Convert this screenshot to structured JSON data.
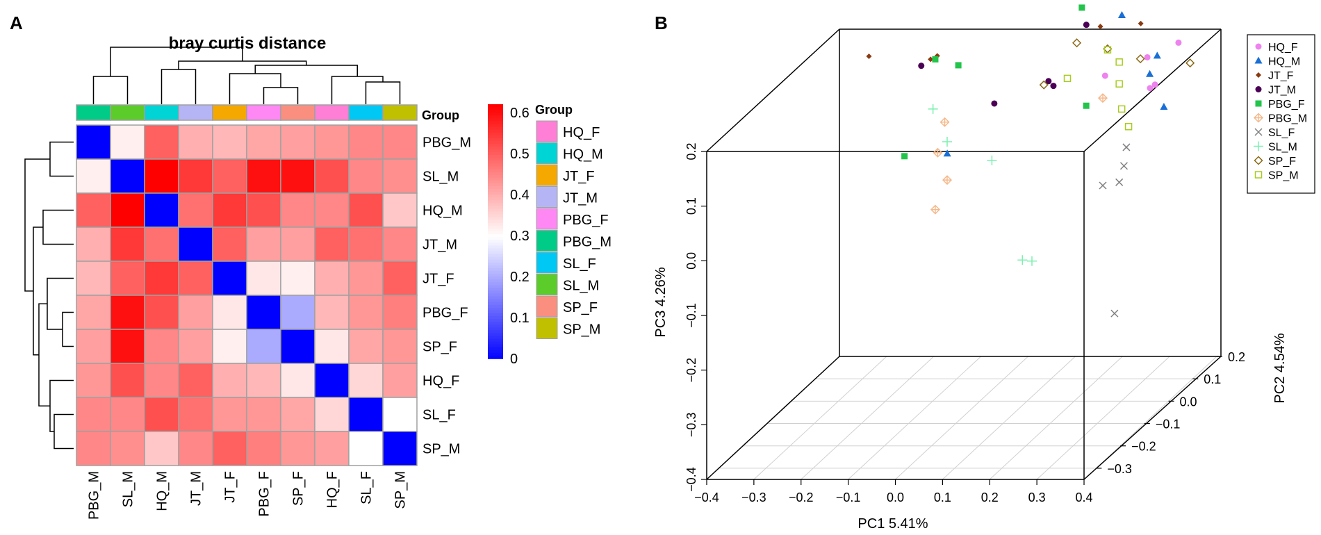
{
  "panels": {
    "a_label": "A",
    "b_label": "B"
  },
  "chart_data": [
    {
      "type": "heatmap",
      "title": "bray curtis distance",
      "group_header": "Group",
      "rows": [
        "PBG_M",
        "SL_M",
        "HQ_M",
        "JT_M",
        "JT_F",
        "PBG_F",
        "SP_F",
        "HQ_F",
        "SL_F",
        "SP_M"
      ],
      "cols": [
        "PBG_M",
        "SL_M",
        "HQ_M",
        "JT_M",
        "JT_F",
        "PBG_F",
        "SP_F",
        "HQ_F",
        "SL_F",
        "SP_M"
      ],
      "col_groups": [
        "PBG_M",
        "SL_M",
        "HQ_M",
        "JT_M",
        "JT_F",
        "PBG_F",
        "SP_F",
        "HQ_F",
        "SL_F",
        "SP_M"
      ],
      "values": [
        [
          0.0,
          0.32,
          0.5,
          0.4,
          0.39,
          0.41,
          0.42,
          0.43,
          0.45,
          0.45
        ],
        [
          0.32,
          0.0,
          0.62,
          0.55,
          0.5,
          0.6,
          0.6,
          0.52,
          0.45,
          0.44
        ],
        [
          0.5,
          0.62,
          0.0,
          0.48,
          0.55,
          0.52,
          0.45,
          0.45,
          0.52,
          0.37
        ],
        [
          0.4,
          0.55,
          0.48,
          0.0,
          0.5,
          0.42,
          0.42,
          0.5,
          0.48,
          0.45
        ],
        [
          0.39,
          0.5,
          0.55,
          0.5,
          0.0,
          0.33,
          0.32,
          0.4,
          0.43,
          0.5
        ],
        [
          0.41,
          0.6,
          0.52,
          0.42,
          0.33,
          0.0,
          0.2,
          0.39,
          0.43,
          0.46
        ],
        [
          0.42,
          0.6,
          0.45,
          0.42,
          0.32,
          0.2,
          0.0,
          0.33,
          0.41,
          0.43
        ],
        [
          0.43,
          0.52,
          0.45,
          0.5,
          0.4,
          0.39,
          0.33,
          0.0,
          0.35,
          0.42
        ],
        [
          0.45,
          0.45,
          0.52,
          0.48,
          0.43,
          0.43,
          0.41,
          0.35,
          0.0,
          0.3
        ],
        [
          0.45,
          0.44,
          0.37,
          0.45,
          0.5,
          0.46,
          0.43,
          0.42,
          0.3,
          0.0
        ]
      ],
      "scale": {
        "min": 0,
        "mid": 0.3,
        "max": 0.62,
        "low_color": "#0000ff",
        "mid_color": "#ffffff",
        "high_color": "#ff0000",
        "ticks": [
          "0",
          "0.1",
          "0.2",
          "0.3",
          "0.4",
          "0.5",
          "0.6"
        ],
        "tick_values": [
          0,
          0.1,
          0.2,
          0.3,
          0.4,
          0.5,
          0.6
        ]
      },
      "group_legend": {
        "title": "Group",
        "items": [
          {
            "label": "HQ_F",
            "color": "#ff7fd6"
          },
          {
            "label": "HQ_M",
            "color": "#00d4d4"
          },
          {
            "label": "JT_F",
            "color": "#f5a800"
          },
          {
            "label": "JT_M",
            "color": "#b5b5f5"
          },
          {
            "label": "PBG_F",
            "color": "#ff88f5"
          },
          {
            "label": "PBG_M",
            "color": "#00cc88"
          },
          {
            "label": "SL_F",
            "color": "#00c8f5"
          },
          {
            "label": "SL_M",
            "color": "#5ccc2a"
          },
          {
            "label": "SP_F",
            "color": "#fa8f80"
          },
          {
            "label": "SP_M",
            "color": "#c0c000"
          }
        ]
      }
    },
    {
      "type": "scatter",
      "subtype": "3d-pcoa",
      "x_label": "PC1 5.41%",
      "y_label": "PC2 4.54%",
      "z_label": "PC3 4.26%",
      "x_ticks": [
        "−0.4",
        "−0.3",
        "−0.2",
        "−0.1",
        "0.0",
        "0.1",
        "0.2",
        "0.3",
        "0.4"
      ],
      "x_tick_values": [
        -0.4,
        -0.3,
        -0.2,
        -0.1,
        0.0,
        0.1,
        0.2,
        0.3,
        0.4
      ],
      "y_ticks": [
        "−0.3",
        "−0.2",
        "−0.1",
        "0.0",
        "0.1",
        "0.2"
      ],
      "y_tick_values": [
        -0.3,
        -0.2,
        -0.1,
        0.0,
        0.1,
        0.2
      ],
      "z_ticks": [
        "−0.4",
        "−0.3",
        "−0.2",
        "−0.1",
        "0.0",
        "0.1",
        "0.2"
      ],
      "z_tick_values": [
        -0.4,
        -0.3,
        -0.2,
        -0.1,
        0.0,
        0.1,
        0.2
      ],
      "xlim": [
        -0.4,
        0.4
      ],
      "ylim": [
        -0.35,
        0.2
      ],
      "zlim": [
        -0.4,
        0.2
      ],
      "legend": [
        {
          "label": "HQ_F",
          "color": "#ee82ee",
          "marker": "circle"
        },
        {
          "label": "HQ_M",
          "color": "#1a6fd6",
          "marker": "triangle"
        },
        {
          "label": "JT_F",
          "color": "#8b3a0f",
          "marker": "diamond"
        },
        {
          "label": "JT_M",
          "color": "#4b0055",
          "marker": "circle"
        },
        {
          "label": "PBG_F",
          "color": "#22c44a",
          "marker": "square"
        },
        {
          "label": "PBG_M",
          "color": "#f5b88a",
          "marker": "plus-diamond"
        },
        {
          "label": "SL_F",
          "color": "#808080",
          "marker": "cross"
        },
        {
          "label": "SL_M",
          "color": "#7df0b0",
          "marker": "plus"
        },
        {
          "label": "SP_F",
          "color": "#8b6914",
          "marker": "open-diamond"
        },
        {
          "label": "SP_M",
          "color": "#a8cc20",
          "marker": "open-square"
        }
      ],
      "points": [
        {
          "g": "HQ_F",
          "x": 0.31,
          "y": 0.12,
          "z": 0.13
        },
        {
          "g": "HQ_F",
          "x": 0.24,
          "y": 0.05,
          "z": 0.175
        },
        {
          "g": "HQ_F",
          "x": 0.37,
          "y": 0.1,
          "z": 0.215
        },
        {
          "g": "HQ_F",
          "x": 0.35,
          "y": 0.01,
          "z": 0.225
        },
        {
          "g": "HQ_F",
          "x": 0.32,
          "y": 0.08,
          "z": 0.14
        },
        {
          "g": "HQ_M",
          "x": 0.25,
          "y": 0.1,
          "z": 0.265
        },
        {
          "g": "HQ_M",
          "x": 0.35,
          "y": 0.02,
          "z": 0.19
        },
        {
          "g": "HQ_M",
          "x": 0.33,
          "y": 0.09,
          "z": 0.195
        },
        {
          "g": "HQ_M",
          "x": 0.38,
          "y": 0.02,
          "z": 0.13
        },
        {
          "g": "HQ_M",
          "x": -0.11,
          "y": 0.08,
          "z": 0.02
        },
        {
          "g": "JT_F",
          "x": -0.23,
          "y": -0.01,
          "z": 0.235
        },
        {
          "g": "JT_F",
          "x": -0.13,
          "y": 0.05,
          "z": 0.205
        },
        {
          "g": "JT_F",
          "x": -0.08,
          "y": -0.02,
          "z": 0.24
        },
        {
          "g": "JT_F",
          "x": 0.23,
          "y": 0.05,
          "z": 0.265
        },
        {
          "g": "JT_F",
          "x": 0.29,
          "y": 0.1,
          "z": 0.25
        },
        {
          "g": "JT_M",
          "x": -0.16,
          "y": 0.07,
          "z": 0.185
        },
        {
          "g": "JT_M",
          "x": 0.19,
          "y": 0.07,
          "z": 0.26
        },
        {
          "g": "JT_M",
          "x": 0.11,
          "y": 0.09,
          "z": 0.14
        },
        {
          "g": "JT_M",
          "x": 0.12,
          "y": 0.05,
          "z": 0.165
        },
        {
          "g": "JT_M",
          "x": 0.0,
          "y": 0.06,
          "z": 0.12
        },
        {
          "g": "PBG_F",
          "x": -0.02,
          "y": -0.05,
          "z": 0.235
        },
        {
          "g": "PBG_F",
          "x": -0.12,
          "y": 0.05,
          "z": 0.205
        },
        {
          "g": "PBG_F",
          "x": 0.16,
          "y": 0.11,
          "z": 0.275
        },
        {
          "g": "PBG_F",
          "x": 0.2,
          "y": 0.05,
          "z": 0.12
        },
        {
          "g": "PBG_F",
          "x": -0.17,
          "y": 0.02,
          "z": 0.04
        },
        {
          "g": "PBG_M",
          "x": -0.1,
          "y": 0.05,
          "z": 0.09
        },
        {
          "g": "PBG_M",
          "x": -0.12,
          "y": 0.06,
          "z": 0.03
        },
        {
          "g": "PBG_M",
          "x": -0.1,
          "y": 0.06,
          "z": -0.02
        },
        {
          "g": "PBG_M",
          "x": -0.12,
          "y": 0.05,
          "z": -0.07
        },
        {
          "g": "PBG_M",
          "x": 0.23,
          "y": 0.06,
          "z": 0.13
        },
        {
          "g": "SL_F",
          "x": 0.28,
          "y": 0.06,
          "z": 0.04
        },
        {
          "g": "SL_F",
          "x": 0.28,
          "y": 0.05,
          "z": 0.01
        },
        {
          "g": "SL_F",
          "x": 0.23,
          "y": 0.06,
          "z": -0.03
        },
        {
          "g": "SL_F",
          "x": 0.27,
          "y": 0.05,
          "z": -0.02
        },
        {
          "g": "SL_F",
          "x": 0.26,
          "y": 0.05,
          "z": -0.26
        },
        {
          "g": "SL_M",
          "x": -0.13,
          "y": 0.06,
          "z": 0.11
        },
        {
          "g": "SL_M",
          "x": -0.1,
          "y": 0.06,
          "z": 0.05
        },
        {
          "g": "SL_M",
          "x": 0.0,
          "y": 0.05,
          "z": 0.02
        },
        {
          "g": "SL_M",
          "x": 0.08,
          "y": 0.02,
          "z": -0.15
        },
        {
          "g": "SL_M",
          "x": 0.09,
          "y": 0.04,
          "z": -0.16
        },
        {
          "g": "SP_F",
          "x": 0.18,
          "y": 0.05,
          "z": 0.235
        },
        {
          "g": "SP_F",
          "x": 0.24,
          "y": 0.06,
          "z": 0.22
        },
        {
          "g": "SP_F",
          "x": 0.32,
          "y": 0.04,
          "z": 0.21
        },
        {
          "g": "SP_F",
          "x": 0.1,
          "y": 0.07,
          "z": 0.15
        },
        {
          "g": "SP_F",
          "x": 0.41,
          "y": 0.07,
          "z": 0.19
        },
        {
          "g": "SP_M",
          "x": 0.23,
          "y": 0.08,
          "z": 0.21
        },
        {
          "g": "SP_M",
          "x": 0.27,
          "y": 0.05,
          "z": 0.2
        },
        {
          "g": "SP_M",
          "x": 0.27,
          "y": 0.05,
          "z": 0.16
        },
        {
          "g": "SP_M",
          "x": 0.16,
          "y": 0.05,
          "z": 0.17
        },
        {
          "g": "SP_M",
          "x": 0.27,
          "y": 0.06,
          "z": 0.11
        },
        {
          "g": "SP_M",
          "x": 0.3,
          "y": 0.03,
          "z": 0.09
        }
      ]
    }
  ]
}
